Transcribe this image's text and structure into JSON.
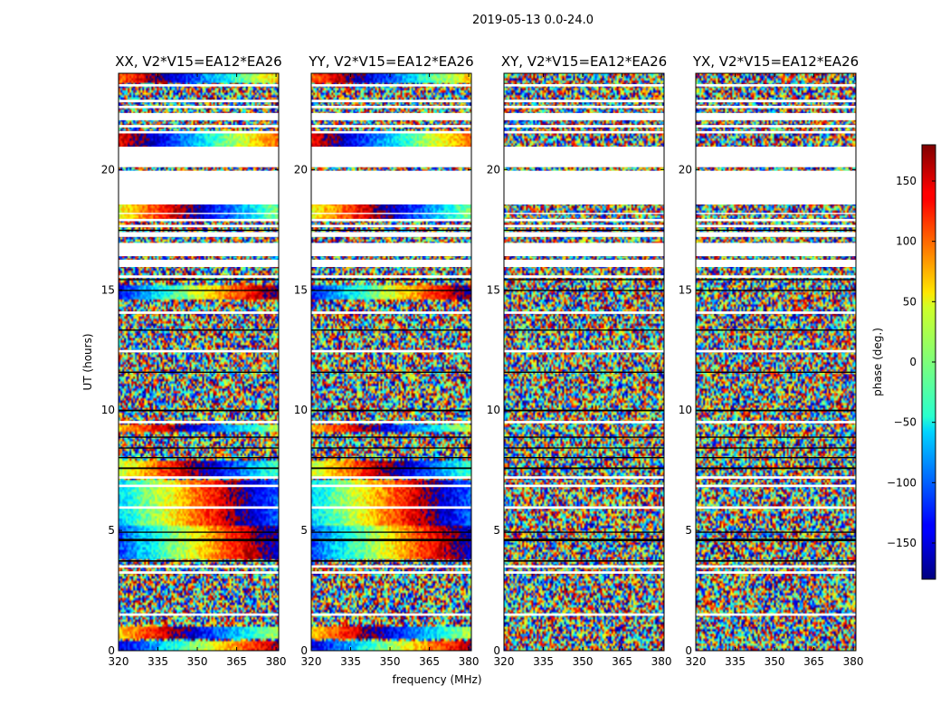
{
  "figure": {
    "suptitle": "2019-05-13 0.0-24.0"
  },
  "chart_data": {
    "type": "heatmap",
    "xlabel": "frequency (MHz)",
    "ylabel": "UT (hours)",
    "xlim": [
      320,
      381
    ],
    "ylim": [
      0,
      24
    ],
    "xticks": [
      320,
      335,
      350,
      365,
      380
    ],
    "yticks": [
      0,
      5,
      10,
      15,
      20
    ],
    "panels": [
      {
        "title": "XX, V2*V15=EA12*EA26",
        "coherent": true
      },
      {
        "title": "YY, V2*V15=EA12*EA26",
        "coherent": true
      },
      {
        "title": "XY, V2*V15=EA12*EA26",
        "coherent": false
      },
      {
        "title": "YX, V2*V15=EA12*EA26",
        "coherent": false
      }
    ],
    "colorbar": {
      "label": "phase (deg.)",
      "range": [
        -180,
        180
      ],
      "ticks": [
        150,
        100,
        50,
        0,
        -50,
        -100,
        -150
      ],
      "tick_labels": [
        "150",
        "100",
        "50",
        "0",
        "−50",
        "−100",
        "−150"
      ],
      "colormap": "jet"
    },
    "data_gaps_ut": [
      [
        1.45,
        1.55
      ],
      [
        3.2,
        3.3
      ],
      [
        3.45,
        3.55
      ],
      [
        5.9,
        6.0
      ],
      [
        6.8,
        6.9
      ],
      [
        7.15,
        7.25
      ],
      [
        9.45,
        9.55
      ],
      [
        12.4,
        12.5
      ],
      [
        14.0,
        14.1
      ],
      [
        15.5,
        15.6
      ],
      [
        15.95,
        16.25
      ],
      [
        16.4,
        16.95
      ],
      [
        17.2,
        17.4
      ],
      [
        17.6,
        17.7
      ],
      [
        17.85,
        17.95
      ],
      [
        18.15,
        18.2
      ],
      [
        18.55,
        19.95
      ],
      [
        20.1,
        20.95
      ],
      [
        21.5,
        21.6
      ],
      [
        21.75,
        21.85
      ],
      [
        22.05,
        22.35
      ],
      [
        22.55,
        22.65
      ],
      [
        22.8,
        22.9
      ],
      [
        23.45,
        23.55
      ]
    ],
    "black_bands_ut": [
      [
        3.7,
        3.76
      ],
      [
        4.55,
        4.65
      ],
      [
        4.9,
        4.95
      ],
      [
        7.55,
        7.62
      ],
      [
        8.0,
        8.05
      ],
      [
        8.4,
        8.45
      ],
      [
        8.85,
        8.9
      ],
      [
        9.95,
        10.02
      ],
      [
        11.55,
        11.6
      ],
      [
        13.3,
        13.35
      ],
      [
        14.95,
        15.0
      ],
      [
        15.4,
        15.45
      ],
      [
        17.45,
        17.5
      ]
    ],
    "coherent_bands_ut": [
      [
        0.05,
        0.45,
        -150
      ],
      [
        0.5,
        0.95,
        60
      ],
      [
        3.8,
        5.2,
        -110
      ],
      [
        5.2,
        7.1,
        -60
      ],
      [
        7.25,
        7.9,
        20
      ],
      [
        9.1,
        9.4,
        60
      ],
      [
        14.6,
        15.2,
        -130
      ],
      [
        17.95,
        18.6,
        40
      ],
      [
        20.95,
        21.6,
        140
      ],
      [
        23.6,
        24.0,
        100
      ]
    ]
  }
}
